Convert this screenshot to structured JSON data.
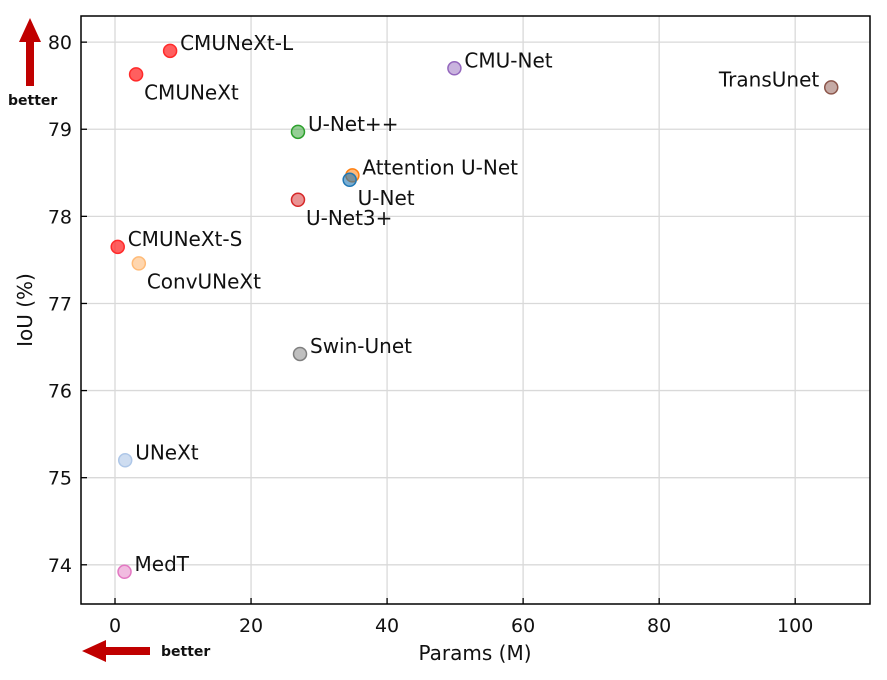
{
  "chart_data": {
    "type": "scatter",
    "title": "",
    "xlabel": "Params (M)",
    "ylabel": "IoU (%)",
    "xlim": [
      -5,
      111
    ],
    "ylim": [
      73.55,
      80.3
    ],
    "xticks": [
      0,
      20,
      40,
      60,
      80,
      100
    ],
    "yticks": [
      74,
      75,
      76,
      77,
      78,
      79,
      80
    ],
    "grid": true,
    "points": [
      {
        "label": "CMUNeXt-L",
        "x": 8.1,
        "y": 79.9,
        "color": "#ff2a2a",
        "alpha": 0.75,
        "label_pos": "right"
      },
      {
        "label": "CMUNeXt",
        "x": 3.1,
        "y": 79.63,
        "color": "#ff2a2a",
        "alpha": 0.75,
        "label_pos": "below-right"
      },
      {
        "label": "CMU-Net",
        "x": 49.9,
        "y": 79.7,
        "color": "#9467bd",
        "alpha": 0.5,
        "label_pos": "right"
      },
      {
        "label": "TransUnet",
        "x": 105.3,
        "y": 79.48,
        "color": "#8c564b",
        "alpha": 0.5,
        "label_pos": "left"
      },
      {
        "label": "U-Net++",
        "x": 26.9,
        "y": 78.97,
        "color": "#2ca02c",
        "alpha": 0.5,
        "label_pos": "right"
      },
      {
        "label": "Attention U-Net",
        "x": 34.9,
        "y": 78.47,
        "color": "#ff7f0e",
        "alpha": 0.55,
        "label_pos": "right"
      },
      {
        "label": "U-Net",
        "x": 34.5,
        "y": 78.42,
        "color": "#1f77b4",
        "alpha": 0.6,
        "label_pos": "below-right"
      },
      {
        "label": "U-Net3+",
        "x": 26.9,
        "y": 78.19,
        "color": "#d62728",
        "alpha": 0.5,
        "label_pos": "below-right"
      },
      {
        "label": "CMUNeXt-S",
        "x": 0.4,
        "y": 77.65,
        "color": "#ff2a2a",
        "alpha": 0.75,
        "label_pos": "right"
      },
      {
        "label": "ConvUNeXt",
        "x": 3.5,
        "y": 77.46,
        "color": "#ffbb78",
        "alpha": 0.6,
        "label_pos": "below-right"
      },
      {
        "label": "Swin-Unet",
        "x": 27.2,
        "y": 76.42,
        "color": "#7f7f7f",
        "alpha": 0.5,
        "label_pos": "right"
      },
      {
        "label": "UNeXt",
        "x": 1.5,
        "y": 75.2,
        "color": "#aec7e8",
        "alpha": 0.6,
        "label_pos": "right"
      },
      {
        "label": "MedT",
        "x": 1.4,
        "y": 73.92,
        "color": "#e377c2",
        "alpha": 0.5,
        "label_pos": "right"
      }
    ],
    "annotations": [
      {
        "text": "better",
        "arrow": "up",
        "color": "#c00000"
      },
      {
        "text": "better",
        "arrow": "left",
        "color": "#c00000"
      }
    ]
  }
}
